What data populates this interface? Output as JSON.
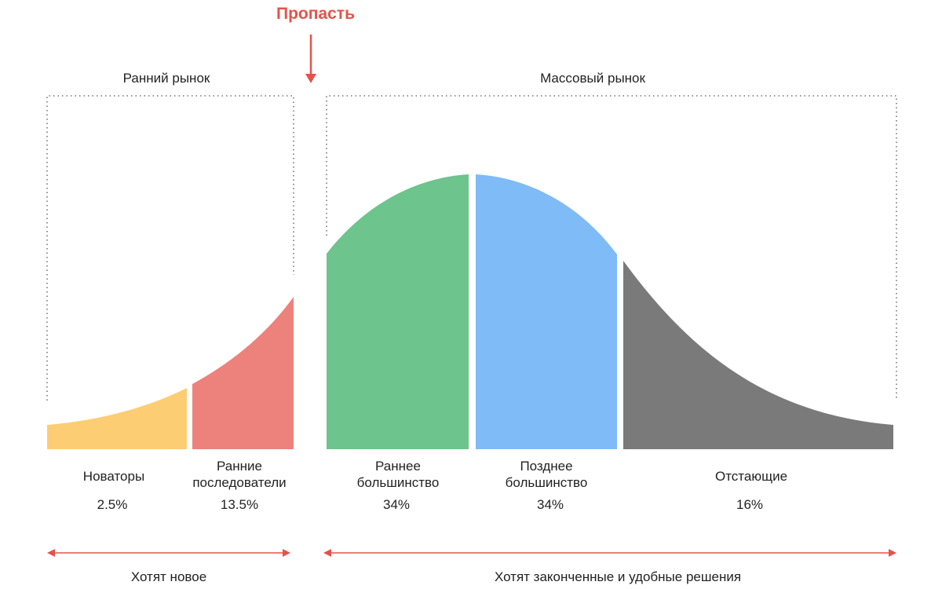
{
  "chasm": {
    "title": "Пропасть"
  },
  "markets": {
    "early": {
      "title": "Ранний рынок",
      "caption": "Хотят новое"
    },
    "mass": {
      "title": "Массовый рынок",
      "caption": "Хотят законченные и удобные решения"
    }
  },
  "segments": [
    {
      "line1": "Новаторы",
      "line2": "",
      "share": "2.5%",
      "color": "#fdcd74"
    },
    {
      "line1": "Ранние",
      "line2": "последователи",
      "share": "13.5%",
      "color": "#ed817c"
    },
    {
      "line1": "Раннее",
      "line2": "большинство",
      "share": "34%",
      "color": "#6dc48c"
    },
    {
      "line1": "Позднее",
      "line2": "большинство",
      "share": "34%",
      "color": "#7ebbf7"
    },
    {
      "line1": "Отстающие",
      "line2": "",
      "share": "16%",
      "color": "#7a7a7a"
    }
  ],
  "colors": {
    "accent": "#e5524b",
    "frame": "#555555",
    "text": "#222222"
  }
}
